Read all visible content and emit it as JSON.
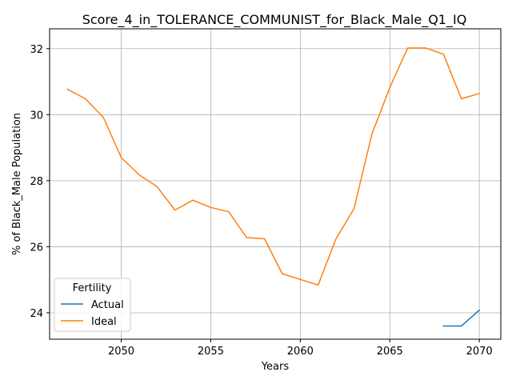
{
  "chart_data": {
    "type": "line",
    "title": "Score_4_in_TOLERANCE_COMMUNIST_for_Black_Male_Q1_IQ",
    "xlabel": "Years",
    "ylabel": "% of Black_Male Population",
    "xlim": [
      2046.0,
      2071.2
    ],
    "ylim": [
      23.2,
      32.6
    ],
    "xticks": [
      2050,
      2055,
      2060,
      2065,
      2070
    ],
    "yticks": [
      24,
      26,
      28,
      30,
      32
    ],
    "grid": true,
    "legend": {
      "title": "Fertility",
      "placement": "lower-left"
    },
    "series": [
      {
        "name": "Actual",
        "color": "#1f77b4",
        "x": [
          2068,
          2069,
          2070
        ],
        "y": [
          23.6,
          23.6,
          24.08
        ]
      },
      {
        "name": "Ideal",
        "color": "#ff7f0e",
        "x": [
          2047,
          2048,
          2049,
          2050,
          2051,
          2052,
          2053,
          2054,
          2055,
          2056,
          2057,
          2058,
          2059,
          2060,
          2061,
          2062,
          2063,
          2064,
          2065,
          2066,
          2067,
          2068,
          2069,
          2070
        ],
        "y": [
          30.77,
          30.48,
          29.92,
          28.7,
          28.18,
          27.82,
          27.11,
          27.41,
          27.19,
          27.06,
          26.28,
          26.24,
          25.18,
          25.01,
          24.84,
          26.25,
          27.15,
          29.41,
          30.82,
          32.02,
          32.02,
          31.83,
          30.48,
          30.64
        ]
      }
    ]
  }
}
